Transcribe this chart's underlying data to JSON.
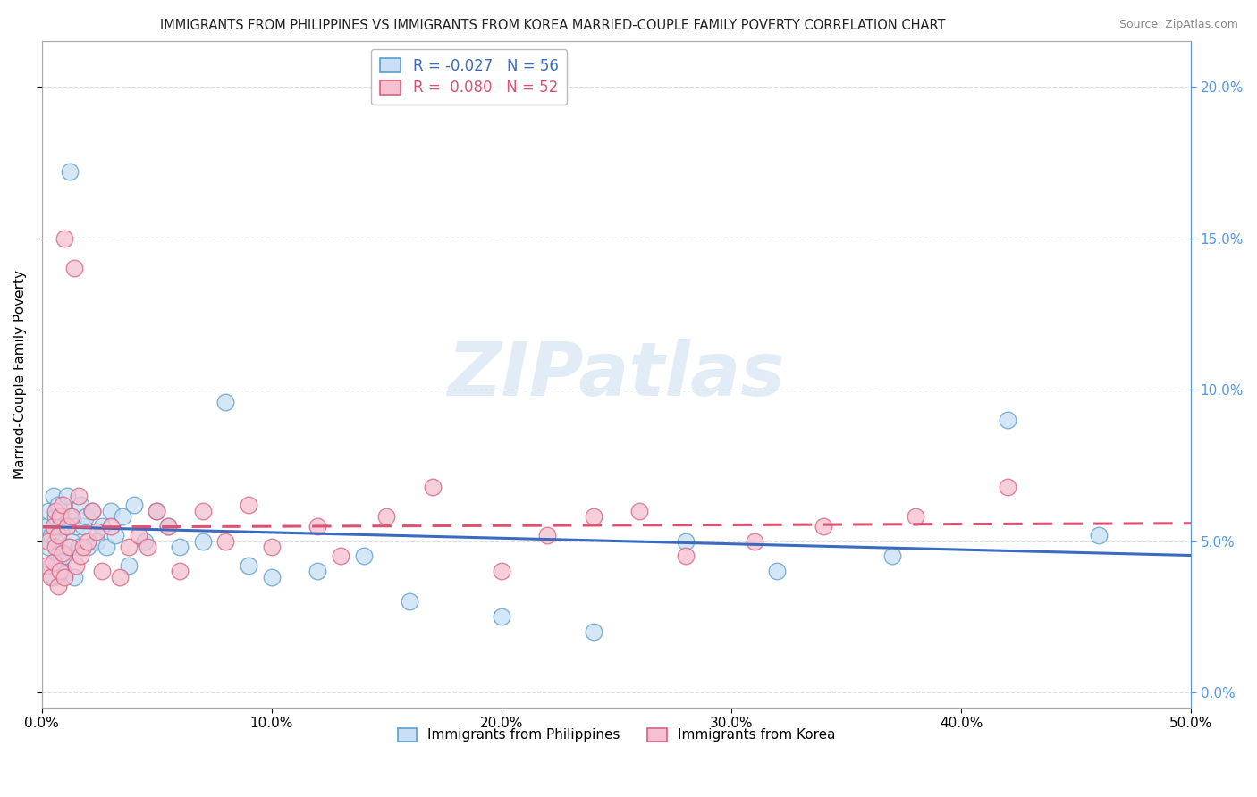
{
  "title": "IMMIGRANTS FROM PHILIPPINES VS IMMIGRANTS FROM KOREA MARRIED-COUPLE FAMILY POVERTY CORRELATION CHART",
  "source": "Source: ZipAtlas.com",
  "ylabel": "Married-Couple Family Poverty",
  "xlim": [
    0.0,
    0.5
  ],
  "ylim": [
    -0.005,
    0.215
  ],
  "xticks": [
    0.0,
    0.1,
    0.2,
    0.3,
    0.4,
    0.5
  ],
  "xticklabels": [
    "0.0%",
    "10.0%",
    "20.0%",
    "30.0%",
    "40.0%",
    "50.0%"
  ],
  "yticks_left": [
    0.0,
    0.05,
    0.1,
    0.15,
    0.2
  ],
  "ytick_left_labels": [
    "0.0%",
    "5.0%",
    "10.0%",
    "15.0%",
    "20.0%"
  ],
  "ytick_right_labels": [
    "0.0%",
    "5.0%",
    "10.0%",
    "15.0%",
    "20.0%"
  ],
  "philippines_fill": "#c8dff5",
  "philippines_edge": "#5b9dc9",
  "korea_fill": "#f5c0d0",
  "korea_edge": "#d96080",
  "philippines_line_color": "#3a6bbf",
  "korea_line_color": "#e05070",
  "right_axis_color": "#5599ee",
  "philippines_R": -0.027,
  "philippines_N": 56,
  "korea_R": 0.08,
  "korea_N": 52,
  "watermark_text": "ZIPatlas",
  "legend_top_labels": [
    "R = -0.027   N = 56",
    "R =  0.080   N = 52"
  ],
  "legend_bottom_labels": [
    "Immigrants from Philippines",
    "Immigrants from Korea"
  ],
  "phil_x": [
    0.002,
    0.003,
    0.003,
    0.004,
    0.004,
    0.005,
    0.005,
    0.006,
    0.006,
    0.007,
    0.007,
    0.008,
    0.008,
    0.009,
    0.009,
    0.01,
    0.01,
    0.011,
    0.011,
    0.012,
    0.012,
    0.013,
    0.014,
    0.015,
    0.016,
    0.017,
    0.018,
    0.019,
    0.02,
    0.022,
    0.024,
    0.026,
    0.028,
    0.03,
    0.032,
    0.035,
    0.038,
    0.04,
    0.045,
    0.05,
    0.055,
    0.06,
    0.07,
    0.08,
    0.09,
    0.1,
    0.12,
    0.14,
    0.16,
    0.2,
    0.24,
    0.28,
    0.32,
    0.37,
    0.42,
    0.46
  ],
  "phil_y": [
    0.055,
    0.048,
    0.06,
    0.042,
    0.052,
    0.038,
    0.065,
    0.05,
    0.058,
    0.043,
    0.062,
    0.047,
    0.055,
    0.04,
    0.058,
    0.045,
    0.055,
    0.048,
    0.065,
    0.058,
    0.172,
    0.05,
    0.038,
    0.055,
    0.048,
    0.062,
    0.055,
    0.058,
    0.048,
    0.06,
    0.05,
    0.055,
    0.048,
    0.06,
    0.052,
    0.058,
    0.042,
    0.062,
    0.05,
    0.06,
    0.055,
    0.048,
    0.05,
    0.096,
    0.042,
    0.038,
    0.04,
    0.045,
    0.03,
    0.025,
    0.02,
    0.05,
    0.04,
    0.045,
    0.09,
    0.052
  ],
  "korea_x": [
    0.002,
    0.003,
    0.004,
    0.005,
    0.005,
    0.006,
    0.006,
    0.007,
    0.007,
    0.008,
    0.008,
    0.009,
    0.009,
    0.01,
    0.01,
    0.011,
    0.012,
    0.013,
    0.014,
    0.015,
    0.016,
    0.017,
    0.018,
    0.02,
    0.022,
    0.024,
    0.026,
    0.03,
    0.034,
    0.038,
    0.042,
    0.046,
    0.05,
    0.055,
    0.06,
    0.07,
    0.08,
    0.09,
    0.1,
    0.12,
    0.13,
    0.15,
    0.17,
    0.2,
    0.22,
    0.24,
    0.26,
    0.28,
    0.31,
    0.34,
    0.38,
    0.42
  ],
  "korea_y": [
    0.042,
    0.05,
    0.038,
    0.055,
    0.043,
    0.048,
    0.06,
    0.035,
    0.052,
    0.04,
    0.058,
    0.046,
    0.062,
    0.038,
    0.15,
    0.055,
    0.048,
    0.058,
    0.14,
    0.042,
    0.065,
    0.045,
    0.048,
    0.05,
    0.06,
    0.053,
    0.04,
    0.055,
    0.038,
    0.048,
    0.052,
    0.048,
    0.06,
    0.055,
    0.04,
    0.06,
    0.05,
    0.062,
    0.048,
    0.055,
    0.045,
    0.058,
    0.068,
    0.04,
    0.052,
    0.058,
    0.06,
    0.045,
    0.05,
    0.055,
    0.058,
    0.068
  ]
}
